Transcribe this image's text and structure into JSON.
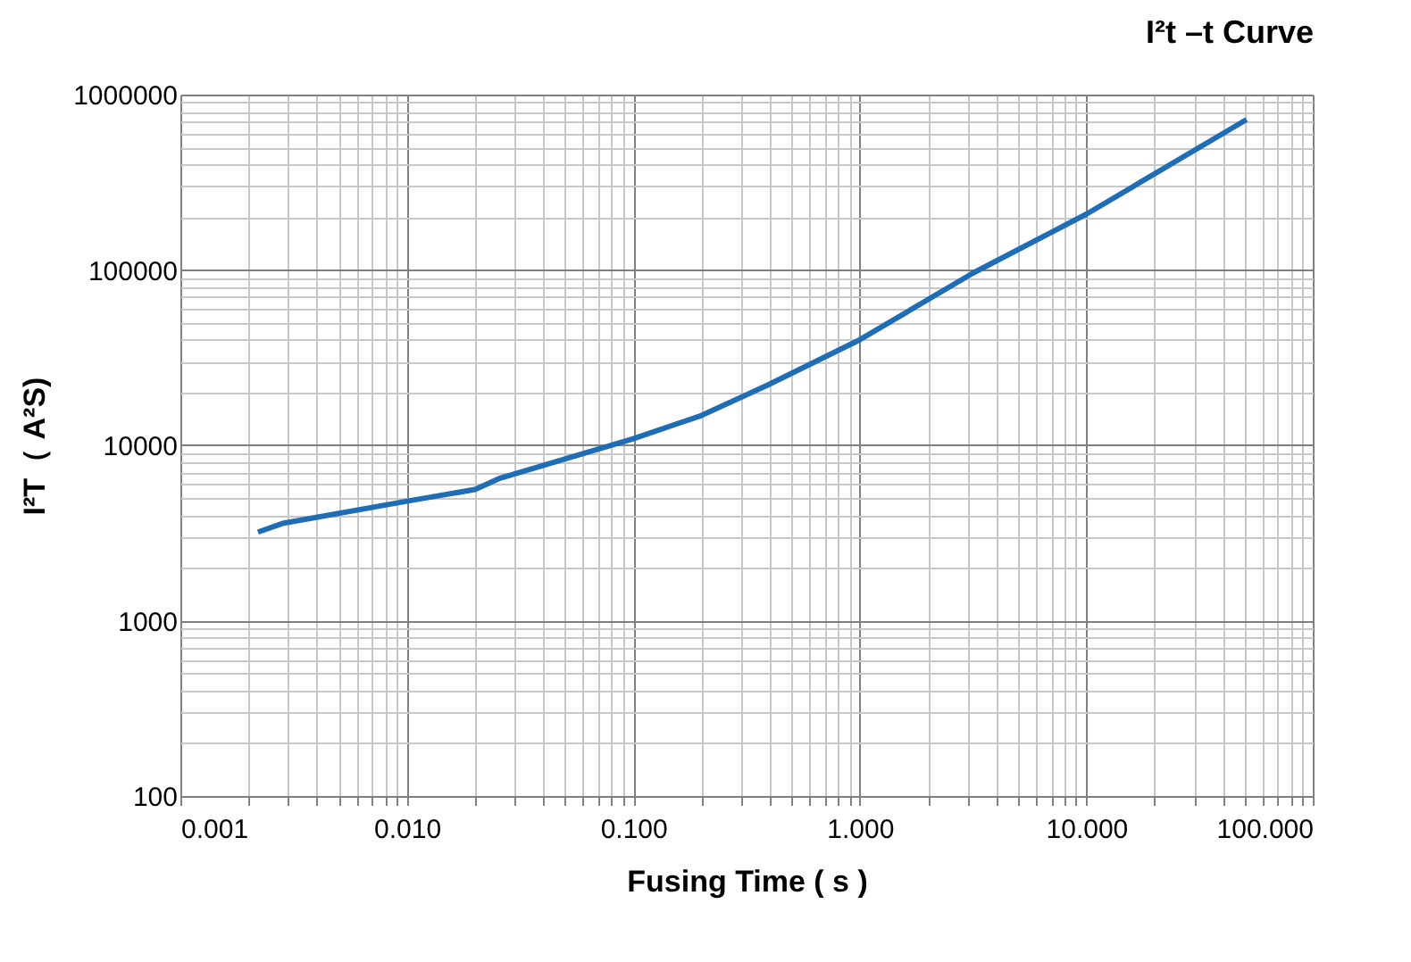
{
  "chart_data": {
    "type": "line",
    "title": "I²t –t Curve",
    "xlabel": "Fusing Time ( s )",
    "ylabel": "I²T（ A²S)",
    "x": [
      0.0022,
      0.00286,
      0.01,
      0.02,
      0.0258,
      0.1,
      0.2,
      0.39,
      1,
      3.16,
      10,
      51
    ],
    "series": [
      {
        "color": "#1f6db5",
        "values": [
          3200,
          3600,
          4800,
          5600,
          6500,
          10900,
          14800,
          22000,
          40000,
          96000,
          208000,
          720000
        ]
      }
    ],
    "log": "xy",
    "xlim": [
      0.001,
      100
    ],
    "ylim": [
      100,
      1000000
    ],
    "xticks": [
      {
        "value": 0.001,
        "label": "0.001"
      },
      {
        "value": 0.01,
        "label": "0.010"
      },
      {
        "value": 0.1,
        "label": "0.100"
      },
      {
        "value": 1,
        "label": "1.000"
      },
      {
        "value": 10,
        "label": "10.000"
      },
      {
        "value": 100,
        "label": "100.000"
      }
    ],
    "yticks": [
      100,
      1000,
      10000,
      100000,
      1000000
    ],
    "grid": true,
    "marker": "none",
    "line_style": "solid"
  }
}
